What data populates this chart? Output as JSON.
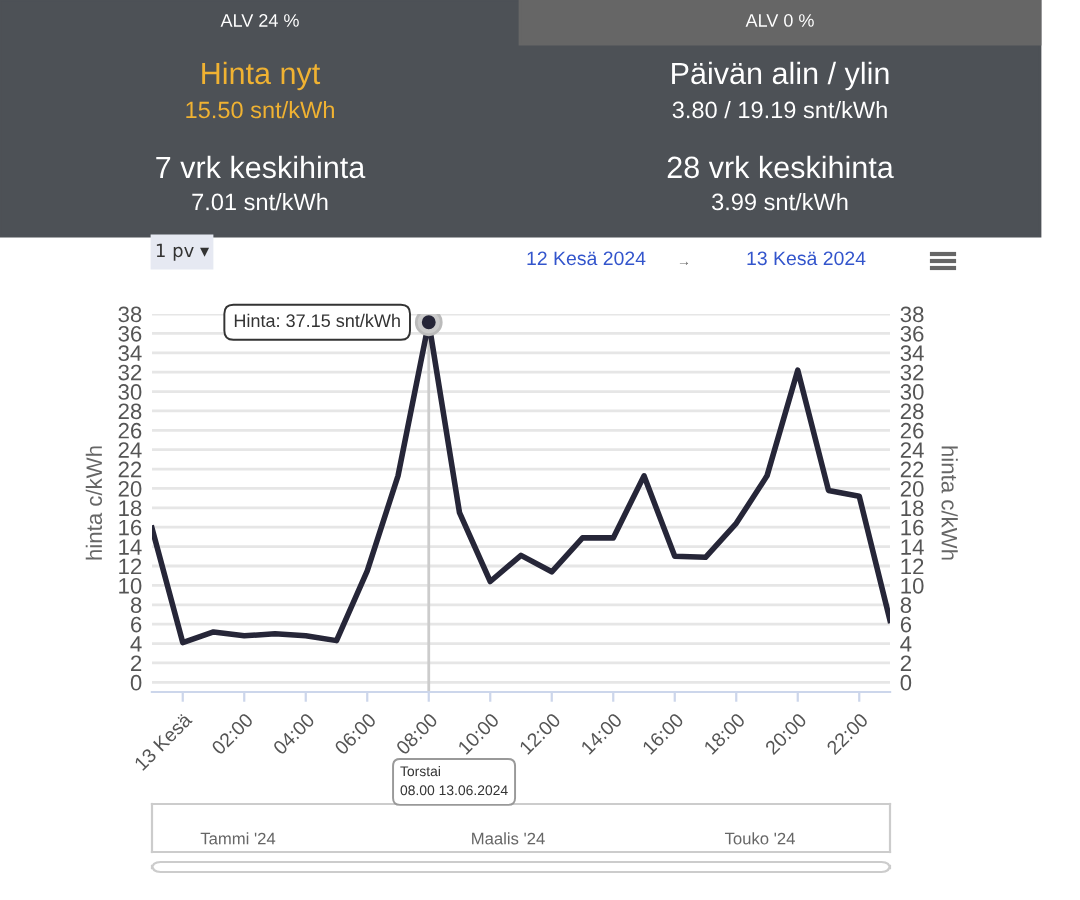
{
  "chart_data": {
    "type": "line",
    "x": [
      "2024-06-12T23:00",
      "2024-06-13T00:00",
      "2024-06-13T01:00",
      "2024-06-13T02:00",
      "2024-06-13T03:00",
      "2024-06-13T04:00",
      "2024-06-13T05:00",
      "2024-06-13T06:00",
      "2024-06-13T07:00",
      "2024-06-13T08:00",
      "2024-06-13T09:00",
      "2024-06-13T10:00",
      "2024-06-13T11:00",
      "2024-06-13T12:00",
      "2024-06-13T13:00",
      "2024-06-13T14:00",
      "2024-06-13T15:00",
      "2024-06-13T16:00",
      "2024-06-13T17:00",
      "2024-06-13T18:00",
      "2024-06-13T19:00",
      "2024-06-13T20:00",
      "2024-06-13T21:00",
      "2024-06-13T22:00",
      "2024-06-13T23:00"
    ],
    "series": [
      {
        "color": "#262638",
        "values": [
          15.9,
          4.1,
          5.2,
          4.8,
          5.0,
          4.8,
          4.3,
          11.5,
          21.3,
          37.15,
          17.5,
          10.4,
          13.1,
          11.4,
          14.9,
          14.9,
          21.3,
          13.0,
          12.9,
          16.4,
          21.3,
          32.2,
          19.8,
          19.2,
          6.4
        ]
      }
    ],
    "xlim": [
      "2024-06-12T23:00",
      "2024-06-13T23:00"
    ],
    "xticks": [
      {
        "value": "2024-06-13T00:00",
        "label": "13 Kesä"
      },
      {
        "value": "2024-06-13T02:00",
        "label": "02:00"
      },
      {
        "value": "2024-06-13T04:00",
        "label": "04:00"
      },
      {
        "value": "2024-06-13T06:00",
        "label": "06:00"
      },
      {
        "value": "2024-06-13T08:00",
        "label": "08:00"
      },
      {
        "value": "2024-06-13T10:00",
        "label": "10:00"
      },
      {
        "value": "2024-06-13T12:00",
        "label": "12:00"
      },
      {
        "value": "2024-06-13T14:00",
        "label": "14:00"
      },
      {
        "value": "2024-06-13T16:00",
        "label": "16:00"
      },
      {
        "value": "2024-06-13T18:00",
        "label": "18:00"
      },
      {
        "value": "2024-06-13T20:00",
        "label": "20:00"
      },
      {
        "value": "2024-06-13T22:00",
        "label": "22:00"
      }
    ],
    "ylim": [
      -1,
      38
    ],
    "yticks": [
      0,
      2,
      4,
      6,
      8,
      10,
      12,
      14,
      16,
      18,
      20,
      22,
      24,
      26,
      28,
      30,
      32,
      34,
      36,
      38
    ],
    "y2lim": [
      -1,
      38
    ],
    "y2ticks": [
      0,
      2,
      4,
      6,
      8,
      10,
      12,
      14,
      16,
      18,
      20,
      22,
      24,
      26,
      28,
      30,
      32,
      34,
      36,
      38
    ],
    "ylabel": "hinta c/kWh",
    "y2label": "hinta c/kWh",
    "grid": "y",
    "legend": false,
    "marker": "none",
    "line_style": "solid",
    "ref_lines": [
      {
        "axis": "x",
        "value": "2024-06-13T08:00",
        "color": "#cccccc"
      }
    ],
    "annotations": [
      "ALV 24 %",
      "ALV 0 %",
      "Hinta nyt",
      "15.50 snt/kWh",
      "Päivän alin / ylin",
      "3.80 / 19.19 snt/kWh",
      "7 vrk keskihinta",
      "7.01 snt/kWh",
      "28 vrk keskihinta",
      "3.99 snt/kWh",
      "1 pv ▾",
      "12 Kesä 2024",
      "→",
      "13 Kesä 2024",
      {
        "text": "Hinta: 37.15 snt/kWh",
        "x": "2024-06-13T08:00",
        "y": 37.15
      },
      "Torstai\n08.00 13.06.2024",
      "Tammi '24",
      "Maalis '24",
      "Touko '24"
    ]
  }
}
